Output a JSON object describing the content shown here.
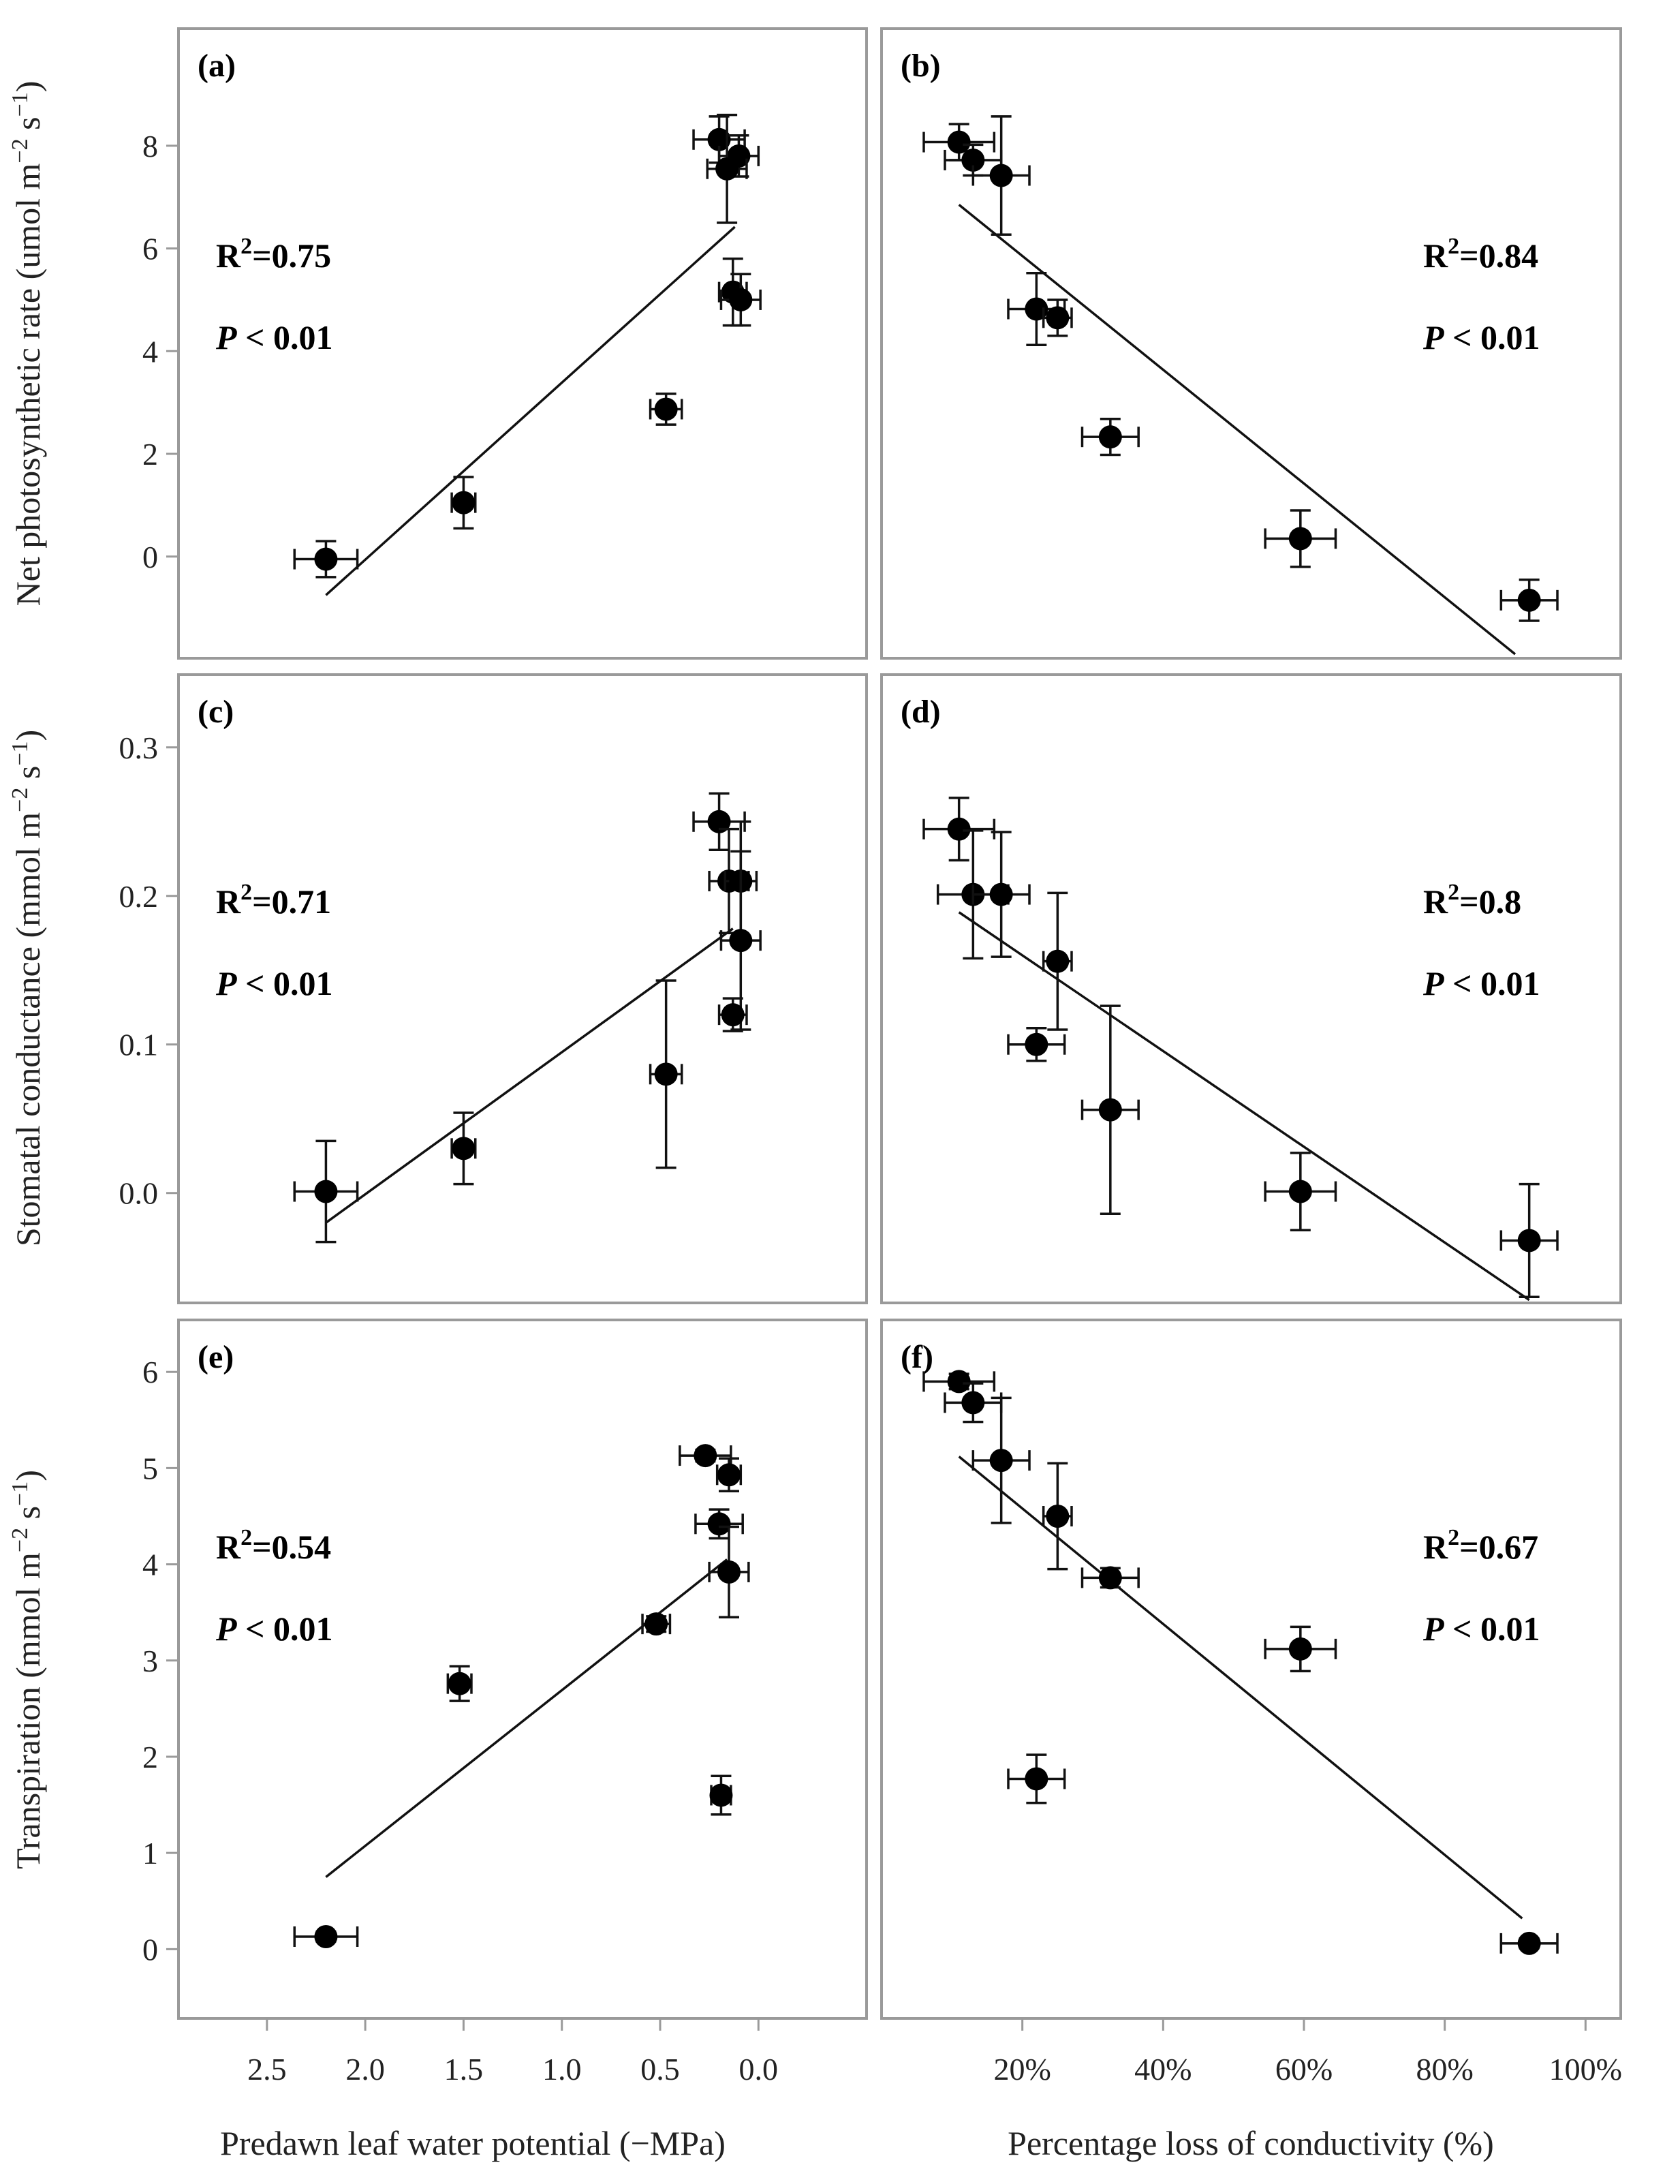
{
  "chart_data": [
    {
      "id": "a",
      "label": "(a)",
      "type": "scatter",
      "xlabel": "",
      "ylabel": "Net photosynthetic rate  (umol m-2 s-1)",
      "x_reversed": true,
      "xlim": [
        2.95,
        -0.55
      ],
      "ylim": [
        -1.98,
        10.28
      ],
      "yticks": [
        "0",
        "2",
        "4",
        "6",
        "8"
      ],
      "r2_text": "R2=0.75",
      "p_text": "P < 0.01",
      "points": [
        {
          "x": 2.2,
          "y": -0.05,
          "xerr": 0.16,
          "yerr": 0.35
        },
        {
          "x": 1.5,
          "y": 1.05,
          "xerr": 0.06,
          "yerr": 0.5
        },
        {
          "x": 0.47,
          "y": 2.87,
          "xerr": 0.08,
          "yerr": 0.3
        },
        {
          "x": 0.2,
          "y": 8.12,
          "xerr": 0.13,
          "yerr": 0.45
        },
        {
          "x": 0.1,
          "y": 7.8,
          "xerr": 0.1,
          "yerr": 0.4
        },
        {
          "x": 0.16,
          "y": 7.55,
          "xerr": 0.1,
          "yerr": 1.05
        },
        {
          "x": 0.13,
          "y": 5.15,
          "xerr": 0.07,
          "yerr": 0.65
        },
        {
          "x": 0.09,
          "y": 5.0,
          "xerr": 0.1,
          "yerr": 0.5
        }
      ],
      "fit": [
        [
          2.2,
          -0.75
        ],
        [
          0.12,
          6.42
        ]
      ]
    },
    {
      "id": "b",
      "label": "(b)",
      "type": "scatter",
      "xlabel": "",
      "ylabel": "",
      "x_reversed": false,
      "xlim": [
        0,
        1.05
      ],
      "ylim": [
        -1.98,
        10.28
      ],
      "yticks": [],
      "r2_text": "R2=0.84",
      "p_text": "P < 0.01",
      "points": [
        {
          "x": 0.11,
          "y": 8.07,
          "xerr": 0.05,
          "yerr": 0.35
        },
        {
          "x": 0.13,
          "y": 7.72,
          "xerr": 0.04,
          "yerr": 0.3
        },
        {
          "x": 0.17,
          "y": 7.42,
          "xerr": 0.04,
          "yerr": 1.15
        },
        {
          "x": 0.22,
          "y": 4.82,
          "xerr": 0.04,
          "yerr": 0.7
        },
        {
          "x": 0.25,
          "y": 4.65,
          "xerr": 0.02,
          "yerr": 0.35
        },
        {
          "x": 0.325,
          "y": 2.33,
          "xerr": 0.04,
          "yerr": 0.35
        },
        {
          "x": 0.595,
          "y": 0.35,
          "xerr": 0.05,
          "yerr": 0.55
        },
        {
          "x": 0.92,
          "y": -0.85,
          "xerr": 0.04,
          "yerr": 0.4
        }
      ],
      "fit": [
        [
          0.11,
          6.85
        ],
        [
          0.9,
          -1.9
        ]
      ]
    },
    {
      "id": "c",
      "label": "(c)",
      "type": "scatter",
      "xlabel": "",
      "ylabel": "Stomatal conductance  (mmol m-2 s-1)",
      "x_reversed": true,
      "xlim": [
        2.95,
        -0.55
      ],
      "ylim": [
        -0.074,
        0.349
      ],
      "yticks": [
        "0.0",
        "0.1",
        "0.2",
        "0.3"
      ],
      "r2_text": "R2=0.71",
      "p_text": "P < 0.01",
      "points": [
        {
          "x": 2.2,
          "y": 0.001,
          "xerr": 0.16,
          "yerr": 0.034
        },
        {
          "x": 1.5,
          "y": 0.03,
          "xerr": 0.06,
          "yerr": 0.024
        },
        {
          "x": 0.47,
          "y": 0.08,
          "xerr": 0.08,
          "yerr": 0.063
        },
        {
          "x": 0.2,
          "y": 0.25,
          "xerr": 0.13,
          "yerr": 0.019
        },
        {
          "x": 0.15,
          "y": 0.21,
          "xerr": 0.1,
          "yerr": 0.035
        },
        {
          "x": 0.09,
          "y": 0.21,
          "xerr": 0.08,
          "yerr": 0.04
        },
        {
          "x": 0.09,
          "y": 0.17,
          "xerr": 0.1,
          "yerr": 0.06
        },
        {
          "x": 0.13,
          "y": 0.12,
          "xerr": 0.07,
          "yerr": 0.011
        }
      ],
      "fit": [
        [
          2.2,
          -0.02
        ],
        [
          0.13,
          0.178
        ]
      ]
    },
    {
      "id": "d",
      "label": "(d)",
      "type": "scatter",
      "xlabel": "",
      "ylabel": "",
      "x_reversed": false,
      "xlim": [
        0,
        1.05
      ],
      "ylim": [
        -0.074,
        0.349
      ],
      "yticks": [],
      "r2_text": "R2=0.8",
      "p_text": "P < 0.01",
      "points": [
        {
          "x": 0.11,
          "y": 0.245,
          "xerr": 0.05,
          "yerr": 0.021
        },
        {
          "x": 0.13,
          "y": 0.201,
          "xerr": 0.05,
          "yerr": 0.043
        },
        {
          "x": 0.17,
          "y": 0.201,
          "xerr": 0.04,
          "yerr": 0.042
        },
        {
          "x": 0.25,
          "y": 0.156,
          "xerr": 0.02,
          "yerr": 0.046
        },
        {
          "x": 0.22,
          "y": 0.1,
          "xerr": 0.04,
          "yerr": 0.011
        },
        {
          "x": 0.325,
          "y": 0.056,
          "xerr": 0.04,
          "yerr": 0.07
        },
        {
          "x": 0.595,
          "y": 0.001,
          "xerr": 0.05,
          "yerr": 0.026
        },
        {
          "x": 0.92,
          "y": -0.032,
          "xerr": 0.04,
          "yerr": 0.038
        }
      ],
      "fit": [
        [
          0.11,
          0.189
        ],
        [
          0.92,
          -0.072
        ]
      ]
    },
    {
      "id": "e",
      "label": "(e)",
      "type": "scatter",
      "xlabel": "Predawn leaf water potential (−MPa)",
      "ylabel": "Transpiration  (mmol m-2 s-1)",
      "x_reversed": true,
      "xlim": [
        2.95,
        -0.55
      ],
      "ylim": [
        -0.72,
        6.54
      ],
      "xticks": [
        "2.5",
        "2.0",
        "1.5",
        "1.0",
        "0.5",
        "0.0"
      ],
      "yticks": [
        "0",
        "1",
        "2",
        "3",
        "4",
        "5",
        "6"
      ],
      "r2_text": "R2=0.54",
      "p_text": "P < 0.01",
      "points": [
        {
          "x": 2.2,
          "y": 0.13,
          "xerr": 0.16,
          "yerr": 0.05
        },
        {
          "x": 1.52,
          "y": 2.76,
          "xerr": 0.06,
          "yerr": 0.18
        },
        {
          "x": 0.52,
          "y": 3.38,
          "xerr": 0.07,
          "yerr": 0.08
        },
        {
          "x": 0.27,
          "y": 5.13,
          "xerr": 0.13,
          "yerr": 0.06
        },
        {
          "x": 0.15,
          "y": 4.93,
          "xerr": 0.06,
          "yerr": 0.17
        },
        {
          "x": 0.2,
          "y": 4.42,
          "xerr": 0.12,
          "yerr": 0.15
        },
        {
          "x": 0.15,
          "y": 3.92,
          "xerr": 0.1,
          "yerr": 0.47
        },
        {
          "x": 0.19,
          "y": 1.6,
          "xerr": 0.05,
          "yerr": 0.2
        }
      ],
      "fit": [
        [
          2.2,
          0.75
        ],
        [
          0.16,
          4.05
        ]
      ]
    },
    {
      "id": "f",
      "label": "(f)",
      "type": "scatter",
      "xlabel": "Percentage loss of conductivity (%)",
      "ylabel": "",
      "x_reversed": false,
      "xlim": [
        0,
        1.05
      ],
      "ylim": [
        -0.72,
        6.54
      ],
      "xticks": [
        "20%",
        "40%",
        "60%",
        "80%",
        "100%"
      ],
      "yticks": [],
      "r2_text": "R2=0.67",
      "p_text": "P < 0.01",
      "points": [
        {
          "x": 0.11,
          "y": 5.9,
          "xerr": 0.05,
          "yerr": 0.08
        },
        {
          "x": 0.13,
          "y": 5.68,
          "xerr": 0.04,
          "yerr": 0.2
        },
        {
          "x": 0.17,
          "y": 5.08,
          "xerr": 0.04,
          "yerr": 0.65
        },
        {
          "x": 0.25,
          "y": 4.5,
          "xerr": 0.02,
          "yerr": 0.55
        },
        {
          "x": 0.325,
          "y": 3.86,
          "xerr": 0.04,
          "yerr": 0.1
        },
        {
          "x": 0.595,
          "y": 3.12,
          "xerr": 0.05,
          "yerr": 0.23
        },
        {
          "x": 0.22,
          "y": 1.77,
          "xerr": 0.04,
          "yerr": 0.25
        },
        {
          "x": 0.92,
          "y": 0.06,
          "xerr": 0.04,
          "yerr": 0.05
        }
      ],
      "fit": [
        [
          0.11,
          5.12
        ],
        [
          0.91,
          0.32
        ]
      ]
    }
  ]
}
